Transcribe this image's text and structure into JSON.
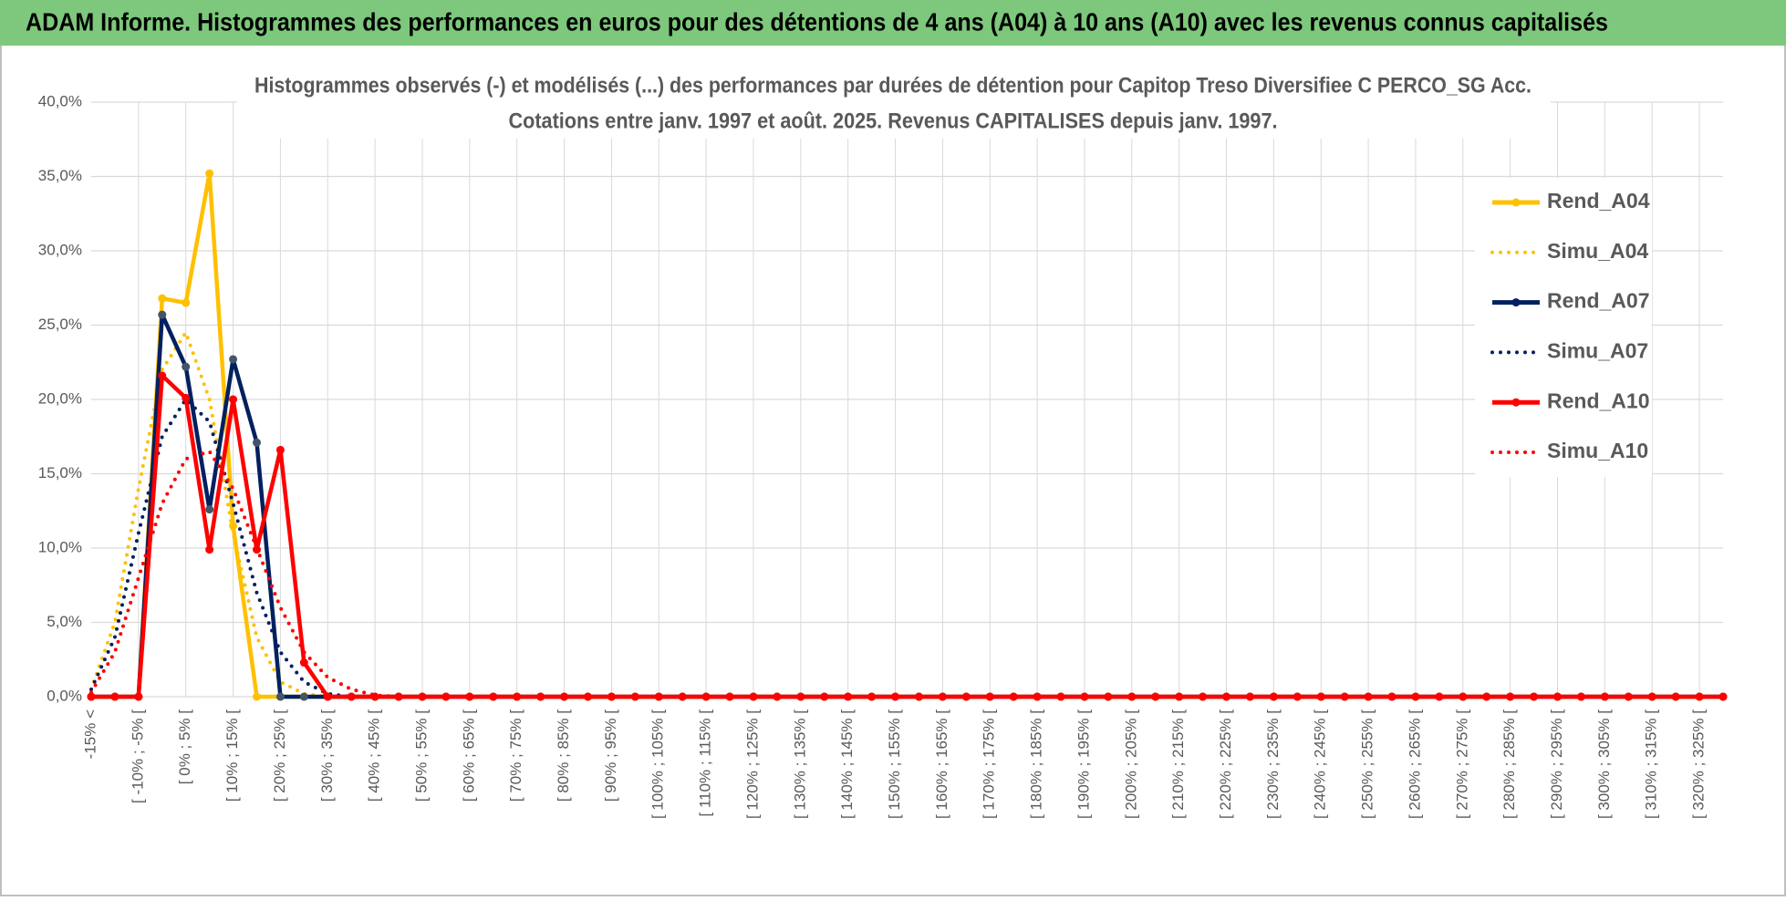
{
  "header": {
    "title": "ADAM Informe. Histogrammes des performances en euros pour des détentions de 4 ans (A04) à 10 ans (A10) avec les revenus connus capitalisés"
  },
  "chart_data": {
    "type": "line",
    "title": "Histogrammes observés (-) et modélisés (...) des performances par durées de détention pour Capitop Treso Diversifiee C PERCO_SG Acc.",
    "subtitle": "Cotations entre janv. 1997 et août. 2025. Revenus CAPITALISES depuis janv. 1997.",
    "categories": [
      "-15% <",
      null,
      "[ -10% ; -5% [",
      null,
      "[ 0% ; 5% [",
      null,
      "[ 10% ; 15% [",
      null,
      "[ 20% ; 25% [",
      null,
      "[ 30% ; 35% [",
      null,
      "[ 40% ; 45% [",
      null,
      "[ 50% ; 55% [",
      null,
      "[ 60% ; 65% [",
      null,
      "[ 70% ; 75% [",
      null,
      "[ 80% ; 85% [",
      null,
      "[ 90% ; 95% [",
      null,
      "[ 100% ; 105% [",
      null,
      "[ 110% ; 115% [",
      null,
      "[ 120% ; 125% [",
      null,
      "[ 130% ; 135% [",
      null,
      "[ 140% ; 145% [",
      null,
      "[ 150% ; 155% [",
      null,
      "[ 160% ; 165% [",
      null,
      "[ 170% ; 175% [",
      null,
      "[ 180% ; 185% [",
      null,
      "[ 190% ; 195% [",
      null,
      "[ 200% ; 205% [",
      null,
      "[ 210% ; 215% [",
      null,
      "[ 220% ; 225% [",
      null,
      "[ 230% ; 235% [",
      null,
      "[ 240% ; 245% [",
      null,
      "[ 250% ; 255% [",
      null,
      "[ 260% ; 265% [",
      null,
      "[ 270% ; 275% [",
      null,
      "[ 280% ; 285% [",
      null,
      "[ 290% ; 295% [",
      null,
      "[ 300% ; 305% [",
      null,
      "[ 310% ; 315% [",
      null,
      "[ 320% ; 325% [",
      null
    ],
    "series": [
      {
        "name": "Rend_A04",
        "color": "#ffc000",
        "style": "solid",
        "markers": true,
        "values": [
          0,
          0,
          0,
          26.8,
          26.5,
          35.2,
          11.5,
          0,
          0,
          0,
          0,
          0,
          0,
          0,
          0,
          0,
          0,
          0,
          0,
          0,
          0,
          0,
          0,
          0,
          0,
          0,
          0,
          0,
          0,
          0,
          0,
          0,
          0,
          0,
          0,
          0,
          0,
          0,
          0,
          0,
          0,
          0,
          0,
          0,
          0,
          0,
          0,
          0,
          0,
          0,
          0,
          0,
          0,
          0,
          0,
          0,
          0,
          0,
          0,
          0,
          0,
          0,
          0,
          0,
          0,
          0,
          0,
          0,
          0,
          0
        ]
      },
      {
        "name": "Simu_A04",
        "color": "#ffc000",
        "style": "dotted",
        "markers": false,
        "values": [
          0.5,
          5,
          14,
          22,
          24.5,
          20,
          11,
          4,
          1,
          0.2,
          0,
          0,
          0,
          0,
          0,
          0,
          0,
          0,
          0,
          0,
          0,
          0,
          0,
          0,
          0,
          0,
          0,
          0,
          0,
          0,
          0,
          0,
          0,
          0,
          0,
          0,
          0,
          0,
          0,
          0,
          0,
          0,
          0,
          0,
          0,
          0,
          0,
          0,
          0,
          0,
          0,
          0,
          0,
          0,
          0,
          0,
          0,
          0,
          0,
          0,
          0,
          0,
          0,
          0,
          0,
          0,
          0,
          0,
          0,
          0
        ]
      },
      {
        "name": "Rend_A07",
        "color": "#002060",
        "style": "solid",
        "markers": true,
        "values": [
          0,
          0,
          0,
          25.7,
          22.2,
          12.6,
          22.7,
          17.1,
          0,
          0,
          0,
          0,
          0,
          0,
          0,
          0,
          0,
          0,
          0,
          0,
          0,
          0,
          0,
          0,
          0,
          0,
          0,
          0,
          0,
          0,
          0,
          0,
          0,
          0,
          0,
          0,
          0,
          0,
          0,
          0,
          0,
          0,
          0,
          0,
          0,
          0,
          0,
          0,
          0,
          0,
          0,
          0,
          0,
          0,
          0,
          0,
          0,
          0,
          0,
          0,
          0,
          0,
          0,
          0,
          0,
          0,
          0,
          0,
          0,
          0
        ]
      },
      {
        "name": "Simu_A07",
        "color": "#002060",
        "style": "dotted",
        "markers": false,
        "values": [
          0.5,
          4,
          11,
          17.5,
          20,
          18.5,
          13,
          7,
          3,
          1,
          0.2,
          0,
          0,
          0,
          0,
          0,
          0,
          0,
          0,
          0,
          0,
          0,
          0,
          0,
          0,
          0,
          0,
          0,
          0,
          0,
          0,
          0,
          0,
          0,
          0,
          0,
          0,
          0,
          0,
          0,
          0,
          0,
          0,
          0,
          0,
          0,
          0,
          0,
          0,
          0,
          0,
          0,
          0,
          0,
          0,
          0,
          0,
          0,
          0,
          0,
          0,
          0,
          0,
          0,
          0,
          0,
          0,
          0,
          0,
          0
        ]
      },
      {
        "name": "Rend_A10",
        "color": "#ff0000",
        "style": "solid",
        "markers": true,
        "values": [
          0,
          0,
          0,
          21.6,
          20.1,
          9.9,
          20.0,
          9.9,
          16.6,
          2.3,
          0,
          0,
          0,
          0,
          0,
          0,
          0,
          0,
          0,
          0,
          0,
          0,
          0,
          0,
          0,
          0,
          0,
          0,
          0,
          0,
          0,
          0,
          0,
          0,
          0,
          0,
          0,
          0,
          0,
          0,
          0,
          0,
          0,
          0,
          0,
          0,
          0,
          0,
          0,
          0,
          0,
          0,
          0,
          0,
          0,
          0,
          0,
          0,
          0,
          0,
          0,
          0,
          0,
          0,
          0,
          0,
          0,
          0,
          0,
          0
        ]
      },
      {
        "name": "Simu_A10",
        "color": "#ff0000",
        "style": "dotted",
        "markers": false,
        "values": [
          0.3,
          3,
          8,
          13,
          16,
          16.5,
          14,
          10,
          6,
          3,
          1.3,
          0.5,
          0.1,
          0,
          0,
          0,
          0,
          0,
          0,
          0,
          0,
          0,
          0,
          0,
          0,
          0,
          0,
          0,
          0,
          0,
          0,
          0,
          0,
          0,
          0,
          0,
          0,
          0,
          0,
          0,
          0,
          0,
          0,
          0,
          0,
          0,
          0,
          0,
          0,
          0,
          0,
          0,
          0,
          0,
          0,
          0,
          0,
          0,
          0,
          0,
          0,
          0,
          0,
          0,
          0,
          0,
          0,
          0,
          0,
          0
        ]
      }
    ],
    "ylim": [
      0,
      40
    ],
    "yticks": [
      {
        "value": 0,
        "label": "0,0%"
      },
      {
        "value": 5,
        "label": "5,0%"
      },
      {
        "value": 10,
        "label": "10,0%"
      },
      {
        "value": 15,
        "label": "15,0%"
      },
      {
        "value": 20,
        "label": "20,0%"
      },
      {
        "value": 25,
        "label": "25,0%"
      },
      {
        "value": 30,
        "label": "30,0%"
      },
      {
        "value": 35,
        "label": "35,0%"
      },
      {
        "value": 40,
        "label": "40,0%"
      }
    ],
    "grid": true,
    "legend": "right"
  }
}
